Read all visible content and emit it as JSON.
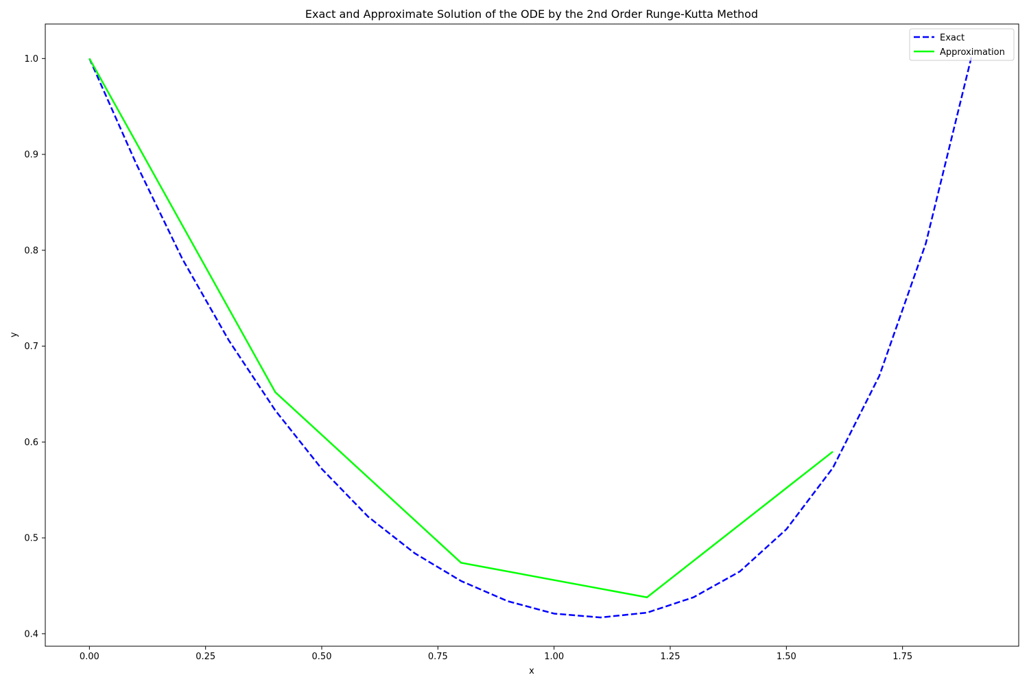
{
  "chart_data": {
    "type": "line",
    "title": "Exact and Approximate Solution of the ODE by the 2nd Order Runge-Kutta Method",
    "xlabel": "x",
    "ylabel": "y",
    "xlim": [
      -0.095,
      2.0
    ],
    "ylim": [
      0.387,
      1.036
    ],
    "xticks": [
      0.0,
      0.25,
      0.5,
      0.75,
      1.0,
      1.25,
      1.5,
      1.75
    ],
    "xtick_labels": [
      "0.00",
      "0.25",
      "0.50",
      "0.75",
      "1.00",
      "1.25",
      "1.50",
      "1.75"
    ],
    "yticks": [
      0.4,
      0.5,
      0.6,
      0.7,
      0.8,
      0.9,
      1.0
    ],
    "ytick_labels": [
      "0.4",
      "0.5",
      "0.6",
      "0.7",
      "0.8",
      "0.9",
      "1.0"
    ],
    "grid": false,
    "legend_position": "top-right",
    "series": [
      {
        "name": "Exact",
        "color": "#0000ff",
        "style": "dashed",
        "x": [
          0.0,
          0.1,
          0.2,
          0.3,
          0.4,
          0.5,
          0.6,
          0.7,
          0.8,
          0.9,
          1.0,
          1.1,
          1.2,
          1.3,
          1.4,
          1.5,
          1.6,
          1.7,
          1.8,
          1.9
        ],
        "y": [
          1.0,
          0.891,
          0.791,
          0.706,
          0.633,
          0.572,
          0.522,
          0.484,
          0.455,
          0.434,
          0.421,
          0.417,
          0.422,
          0.438,
          0.465,
          0.509,
          0.573,
          0.669,
          0.807,
          1.005
        ]
      },
      {
        "name": "Approximation",
        "color": "#00ff00",
        "style": "solid",
        "x": [
          0.0,
          0.4,
          0.8,
          1.2,
          1.6
        ],
        "y": [
          1.0,
          0.652,
          0.474,
          0.438,
          0.59
        ]
      }
    ]
  }
}
